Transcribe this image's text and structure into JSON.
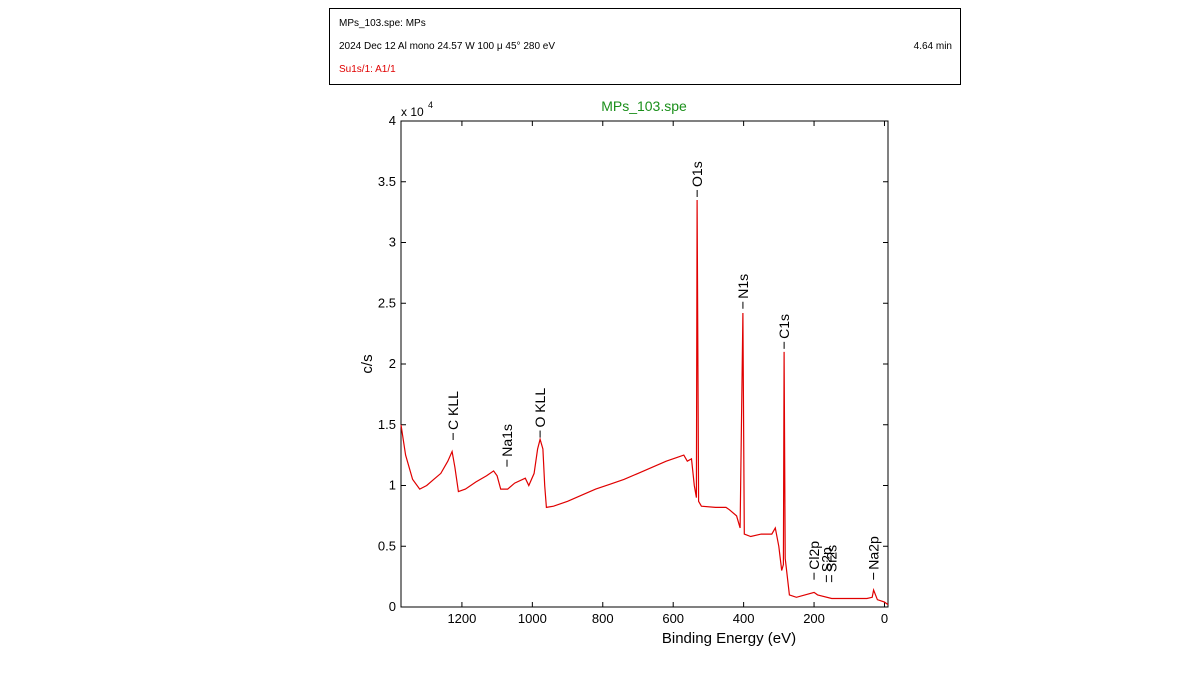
{
  "header": {
    "file": "MPs_103.spe: MPs",
    "conditions": "2024 Dec 12  Al mono  24.57 W  100 μ  45°  280 eV",
    "time": "4.64 min",
    "region": "Su1s/1: A1/1"
  },
  "chart_data": {
    "type": "line",
    "title": "MPs_103.spe",
    "xlabel": "Binding Energy (eV)",
    "ylabel": "c/s",
    "y_multiplier": "x 10",
    "y_multiplier_exponent": "4",
    "color": "#e00000",
    "title_color": "#1a8f1a",
    "xlim": [
      1373,
      -10
    ],
    "ylim": [
      0,
      4
    ],
    "xticks": [
      1200,
      1000,
      800,
      600,
      400,
      200,
      0
    ],
    "yticks": [
      0,
      0.5,
      1,
      1.5,
      2,
      2.5,
      3,
      3.5,
      4
    ],
    "x": [
      1373,
      1360,
      1340,
      1320,
      1300,
      1280,
      1260,
      1240,
      1228,
      1220,
      1210,
      1190,
      1160,
      1130,
      1110,
      1100,
      1090,
      1070,
      1050,
      1020,
      1010,
      995,
      985,
      978,
      970,
      965,
      960,
      940,
      900,
      860,
      820,
      780,
      740,
      700,
      660,
      620,
      590,
      570,
      560,
      548,
      540,
      534,
      532,
      528,
      520,
      480,
      450,
      440,
      420,
      410,
      402,
      398,
      380,
      350,
      320,
      310,
      300,
      292,
      287,
      285,
      282,
      278,
      270,
      250,
      200,
      190,
      150,
      100,
      50,
      35,
      31,
      20,
      0,
      -10
    ],
    "values": [
      1.5,
      1.25,
      1.05,
      0.97,
      1.0,
      1.05,
      1.1,
      1.2,
      1.28,
      1.15,
      0.95,
      0.97,
      1.03,
      1.08,
      1.12,
      1.08,
      0.97,
      0.97,
      1.02,
      1.06,
      1.0,
      1.1,
      1.3,
      1.38,
      1.3,
      1.0,
      0.82,
      0.83,
      0.87,
      0.92,
      0.97,
      1.01,
      1.05,
      1.1,
      1.15,
      1.2,
      1.23,
      1.25,
      1.2,
      1.22,
      1.0,
      0.9,
      3.35,
      0.87,
      0.83,
      0.82,
      0.82,
      0.8,
      0.75,
      0.65,
      2.42,
      0.6,
      0.58,
      0.6,
      0.6,
      0.65,
      0.5,
      0.3,
      0.35,
      2.1,
      0.4,
      0.3,
      0.1,
      0.08,
      0.12,
      0.1,
      0.07,
      0.07,
      0.07,
      0.08,
      0.14,
      0.06,
      0.04,
      0.02
    ],
    "annotations": [
      {
        "text": "C KLL",
        "x": 1225,
        "y": 1.35
      },
      {
        "text": "Na1s",
        "x": 1072,
        "y": 1.13
      },
      {
        "text": "O KLL",
        "x": 978,
        "y": 1.37
      },
      {
        "text": "O1s",
        "x": 532,
        "y": 3.35
      },
      {
        "text": "N1s",
        "x": 402,
        "y": 2.43
      },
      {
        "text": "C1s",
        "x": 285,
        "y": 2.1
      },
      {
        "text": "Cl2p",
        "x": 200,
        "y": 0.2
      },
      {
        "text": "S2p",
        "x": 165,
        "y": 0.18
      },
      {
        "text": "Si2s",
        "x": 150,
        "y": 0.18
      },
      {
        "text": "Na2p",
        "x": 31,
        "y": 0.2
      }
    ]
  }
}
